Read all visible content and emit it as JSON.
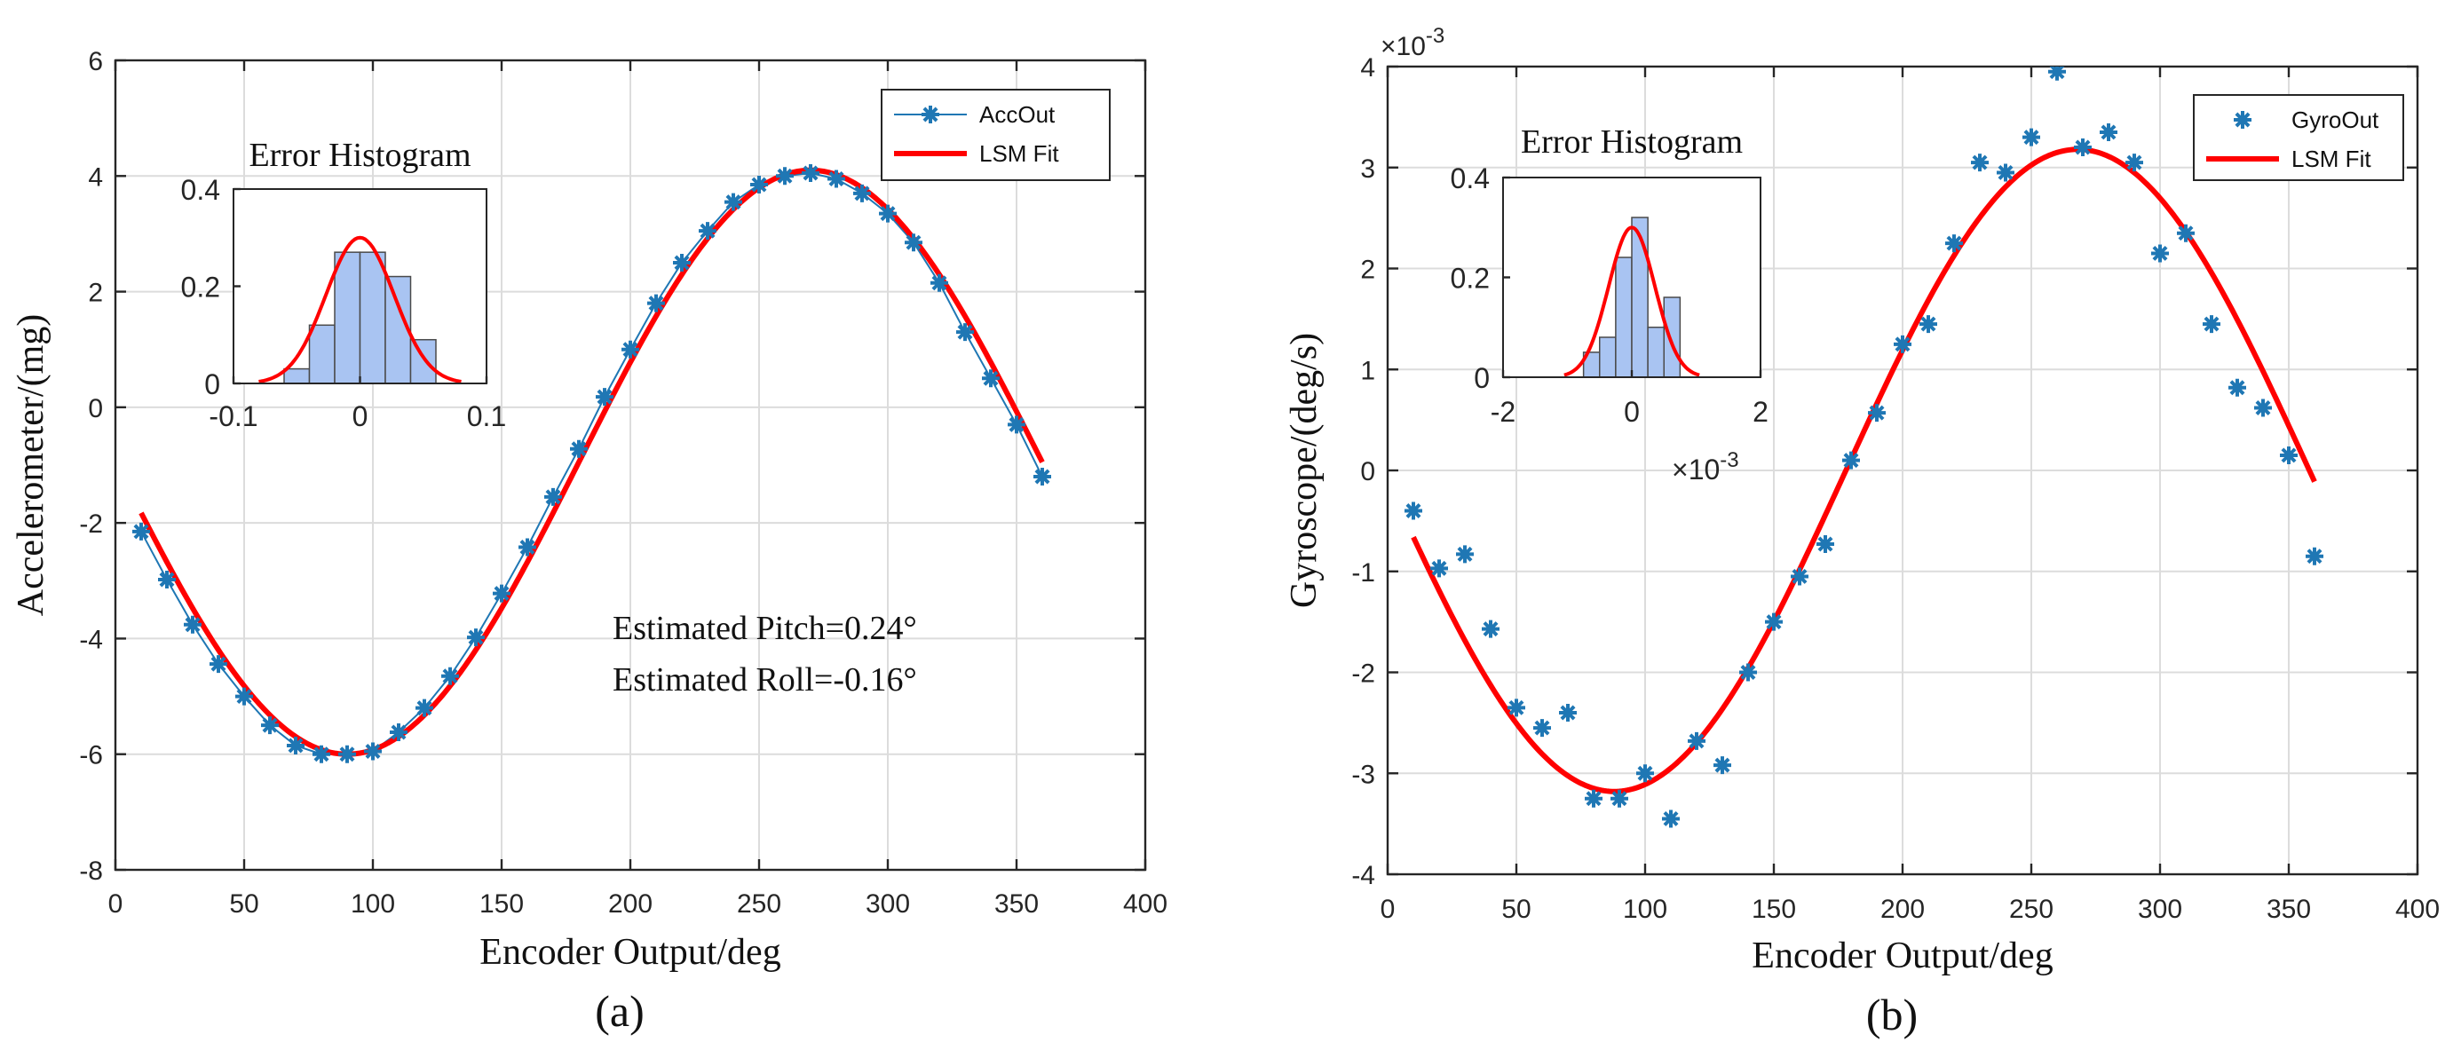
{
  "chart_data": [
    {
      "type": "scatter",
      "panel_label": "(a)",
      "xlabel": "Encoder Output/deg",
      "ylabel": "Accelerometer/(mg)",
      "xlim": [
        0,
        400
      ],
      "ylim": [
        -8,
        6
      ],
      "xticks": [
        0,
        50,
        100,
        150,
        200,
        250,
        300,
        350,
        400
      ],
      "yticks": [
        -8,
        -6,
        -4,
        -2,
        0,
        2,
        4,
        6
      ],
      "grid": true,
      "legend": {
        "position": "top-right",
        "entries": [
          "AccOut",
          "LSM Fit"
        ]
      },
      "annotations": [
        "Estimated Pitch=0.24°",
        "Estimated Roll=-0.16°"
      ],
      "series": [
        {
          "name": "AccOut",
          "style": "line-marker",
          "color": "#1f77b4",
          "x": [
            10,
            20,
            30,
            40,
            50,
            60,
            70,
            80,
            90,
            100,
            110,
            120,
            130,
            140,
            150,
            160,
            170,
            180,
            190,
            200,
            210,
            220,
            230,
            240,
            250,
            260,
            270,
            280,
            290,
            300,
            310,
            320,
            330,
            340,
            350,
            360
          ],
          "y": [
            -2.15,
            -2.98,
            -3.76,
            -4.44,
            -5.0,
            -5.5,
            -5.85,
            -6.0,
            -6.0,
            -5.95,
            -5.62,
            -5.2,
            -4.65,
            -3.98,
            -3.22,
            -2.42,
            -1.55,
            -0.72,
            0.18,
            1.0,
            1.8,
            2.5,
            3.05,
            3.55,
            3.85,
            4.0,
            4.05,
            3.95,
            3.7,
            3.35,
            2.85,
            2.15,
            1.3,
            0.5,
            -0.3,
            -1.2
          ]
        },
        {
          "name": "LSM Fit",
          "style": "line",
          "color": "#ff0000",
          "model": {
            "offset": -0.95,
            "amplitude": 5.05,
            "phase_deg": 90
          },
          "x_range": [
            10,
            360
          ]
        }
      ],
      "inset": {
        "title": "Error Histogram",
        "type": "bar",
        "xlim": [
          -0.1,
          0.1
        ],
        "ylim": [
          0,
          0.4
        ],
        "xticks": [
          "-0.1",
          "0",
          "0.1"
        ],
        "yticks": [
          "0",
          "0.2",
          "0.4"
        ],
        "x_exponent": "",
        "bins": [
          -0.06,
          -0.04,
          -0.02,
          0.0,
          0.02,
          0.04
        ],
        "bin_width": 0.02,
        "values": [
          0.03,
          0.12,
          0.27,
          0.27,
          0.22,
          0.09
        ],
        "fit": {
          "mu": 0.0,
          "sigma": 0.027,
          "peak": 0.3,
          "range": [
            -0.08,
            0.08
          ]
        }
      }
    },
    {
      "type": "scatter",
      "panel_label": "(b)",
      "xlabel": "Encoder Output/deg",
      "ylabel": "Gyroscope/(deg/s)",
      "xlim": [
        0,
        400
      ],
      "ylim": [
        -4,
        4
      ],
      "xticks": [
        0,
        50,
        100,
        150,
        200,
        250,
        300,
        350,
        400
      ],
      "yticks": [
        -4,
        -3,
        -2,
        -1,
        0,
        1,
        2,
        3,
        4
      ],
      "y_exponent": "×10",
      "y_exponent_power": "-3",
      "grid": true,
      "legend": {
        "position": "top-right",
        "entries": [
          "GyroOut",
          "LSM Fit"
        ]
      },
      "series": [
        {
          "name": "GyroOut",
          "style": "marker",
          "color": "#1f77b4",
          "x": [
            10,
            20,
            30,
            40,
            50,
            60,
            70,
            80,
            90,
            100,
            110,
            120,
            130,
            140,
            150,
            160,
            170,
            180,
            190,
            200,
            210,
            220,
            230,
            240,
            250,
            260,
            270,
            280,
            290,
            300,
            310,
            320,
            330,
            340,
            350,
            360
          ],
          "y": [
            -0.4,
            -0.97,
            -0.83,
            -1.57,
            -2.35,
            -2.55,
            -2.4,
            -3.25,
            -3.25,
            -3.0,
            -3.45,
            -2.68,
            -2.92,
            -2.0,
            -1.5,
            -1.05,
            -0.73,
            0.1,
            0.57,
            1.25,
            1.45,
            2.25,
            3.05,
            2.95,
            3.3,
            3.95,
            3.2,
            3.35,
            3.05,
            2.15,
            2.35,
            1.45,
            0.82,
            0.62,
            0.15,
            -0.85
          ]
        },
        {
          "name": "LSM Fit",
          "style": "line",
          "color": "#ff0000",
          "model": {
            "offset": 0.0,
            "amplitude": 3.18,
            "phase_deg": 88
          },
          "x_range": [
            10,
            360
          ]
        }
      ],
      "inset": {
        "title": "Error Histogram",
        "type": "bar",
        "xlim": [
          -2,
          2
        ],
        "ylim": [
          0,
          0.4
        ],
        "xticks": [
          "-2",
          "0",
          "2"
        ],
        "yticks": [
          "0",
          "0.2",
          "0.4"
        ],
        "x_exponent": "×10",
        "x_exponent_power": "-3",
        "bins": [
          -0.75,
          -0.5,
          -0.25,
          0.0,
          0.25,
          0.5
        ],
        "bin_width": 0.25,
        "values": [
          0.05,
          0.08,
          0.24,
          0.32,
          0.1,
          0.16
        ],
        "fit": {
          "mu": 0.0,
          "sigma": 0.36,
          "peak": 0.3,
          "range": [
            -1.05,
            1.05
          ]
        }
      }
    }
  ]
}
